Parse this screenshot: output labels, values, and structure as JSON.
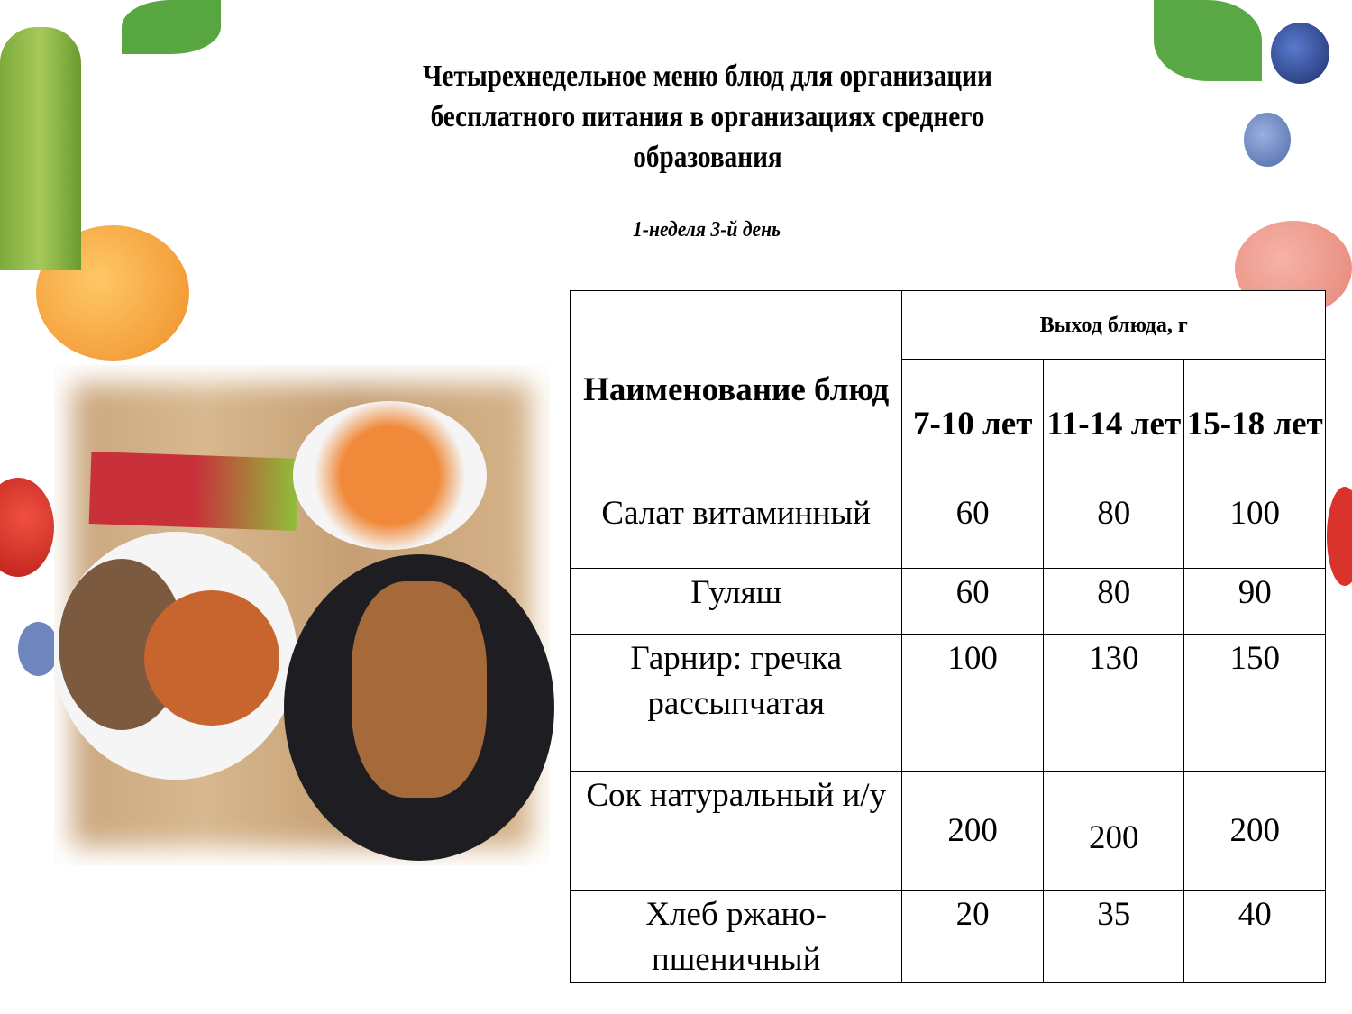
{
  "title": "Четырехнедельное меню блюд для организации бесплатного питания в организациях среднего образования",
  "title_lines": [
    "Четырехнедельное меню блюд для организации",
    "бесплатного питания в организациях среднего",
    "образования"
  ],
  "subtitle": "1-неделя 3-й день",
  "table": {
    "name_header": "Наименование блюд",
    "yield_header": "Выход блюда, г",
    "age_headers": [
      "7-10 лет",
      "11-14 лет",
      "15-18 лет"
    ],
    "rows": [
      {
        "name": "Салат витаминный",
        "values": [
          "60",
          "80",
          "100"
        ]
      },
      {
        "name": "Гуляш",
        "values": [
          "60",
          "80",
          "90"
        ]
      },
      {
        "name": "Гарнир: гречка рассыпчатая",
        "values": [
          "100",
          "130",
          "150"
        ]
      },
      {
        "name": "Сок натуральный и/у",
        "values": [
          "200",
          "200",
          "200"
        ]
      },
      {
        "name": "Хлеб ржано-пшеничный",
        "values": [
          "20",
          "35",
          "40"
        ]
      }
    ]
  },
  "colors": {
    "wood": "#d2b089",
    "leaf": "#4d9a3a",
    "tomato": "#d9342b",
    "apricot": "#f0a13a",
    "blueberry": "#3b5a9a"
  }
}
